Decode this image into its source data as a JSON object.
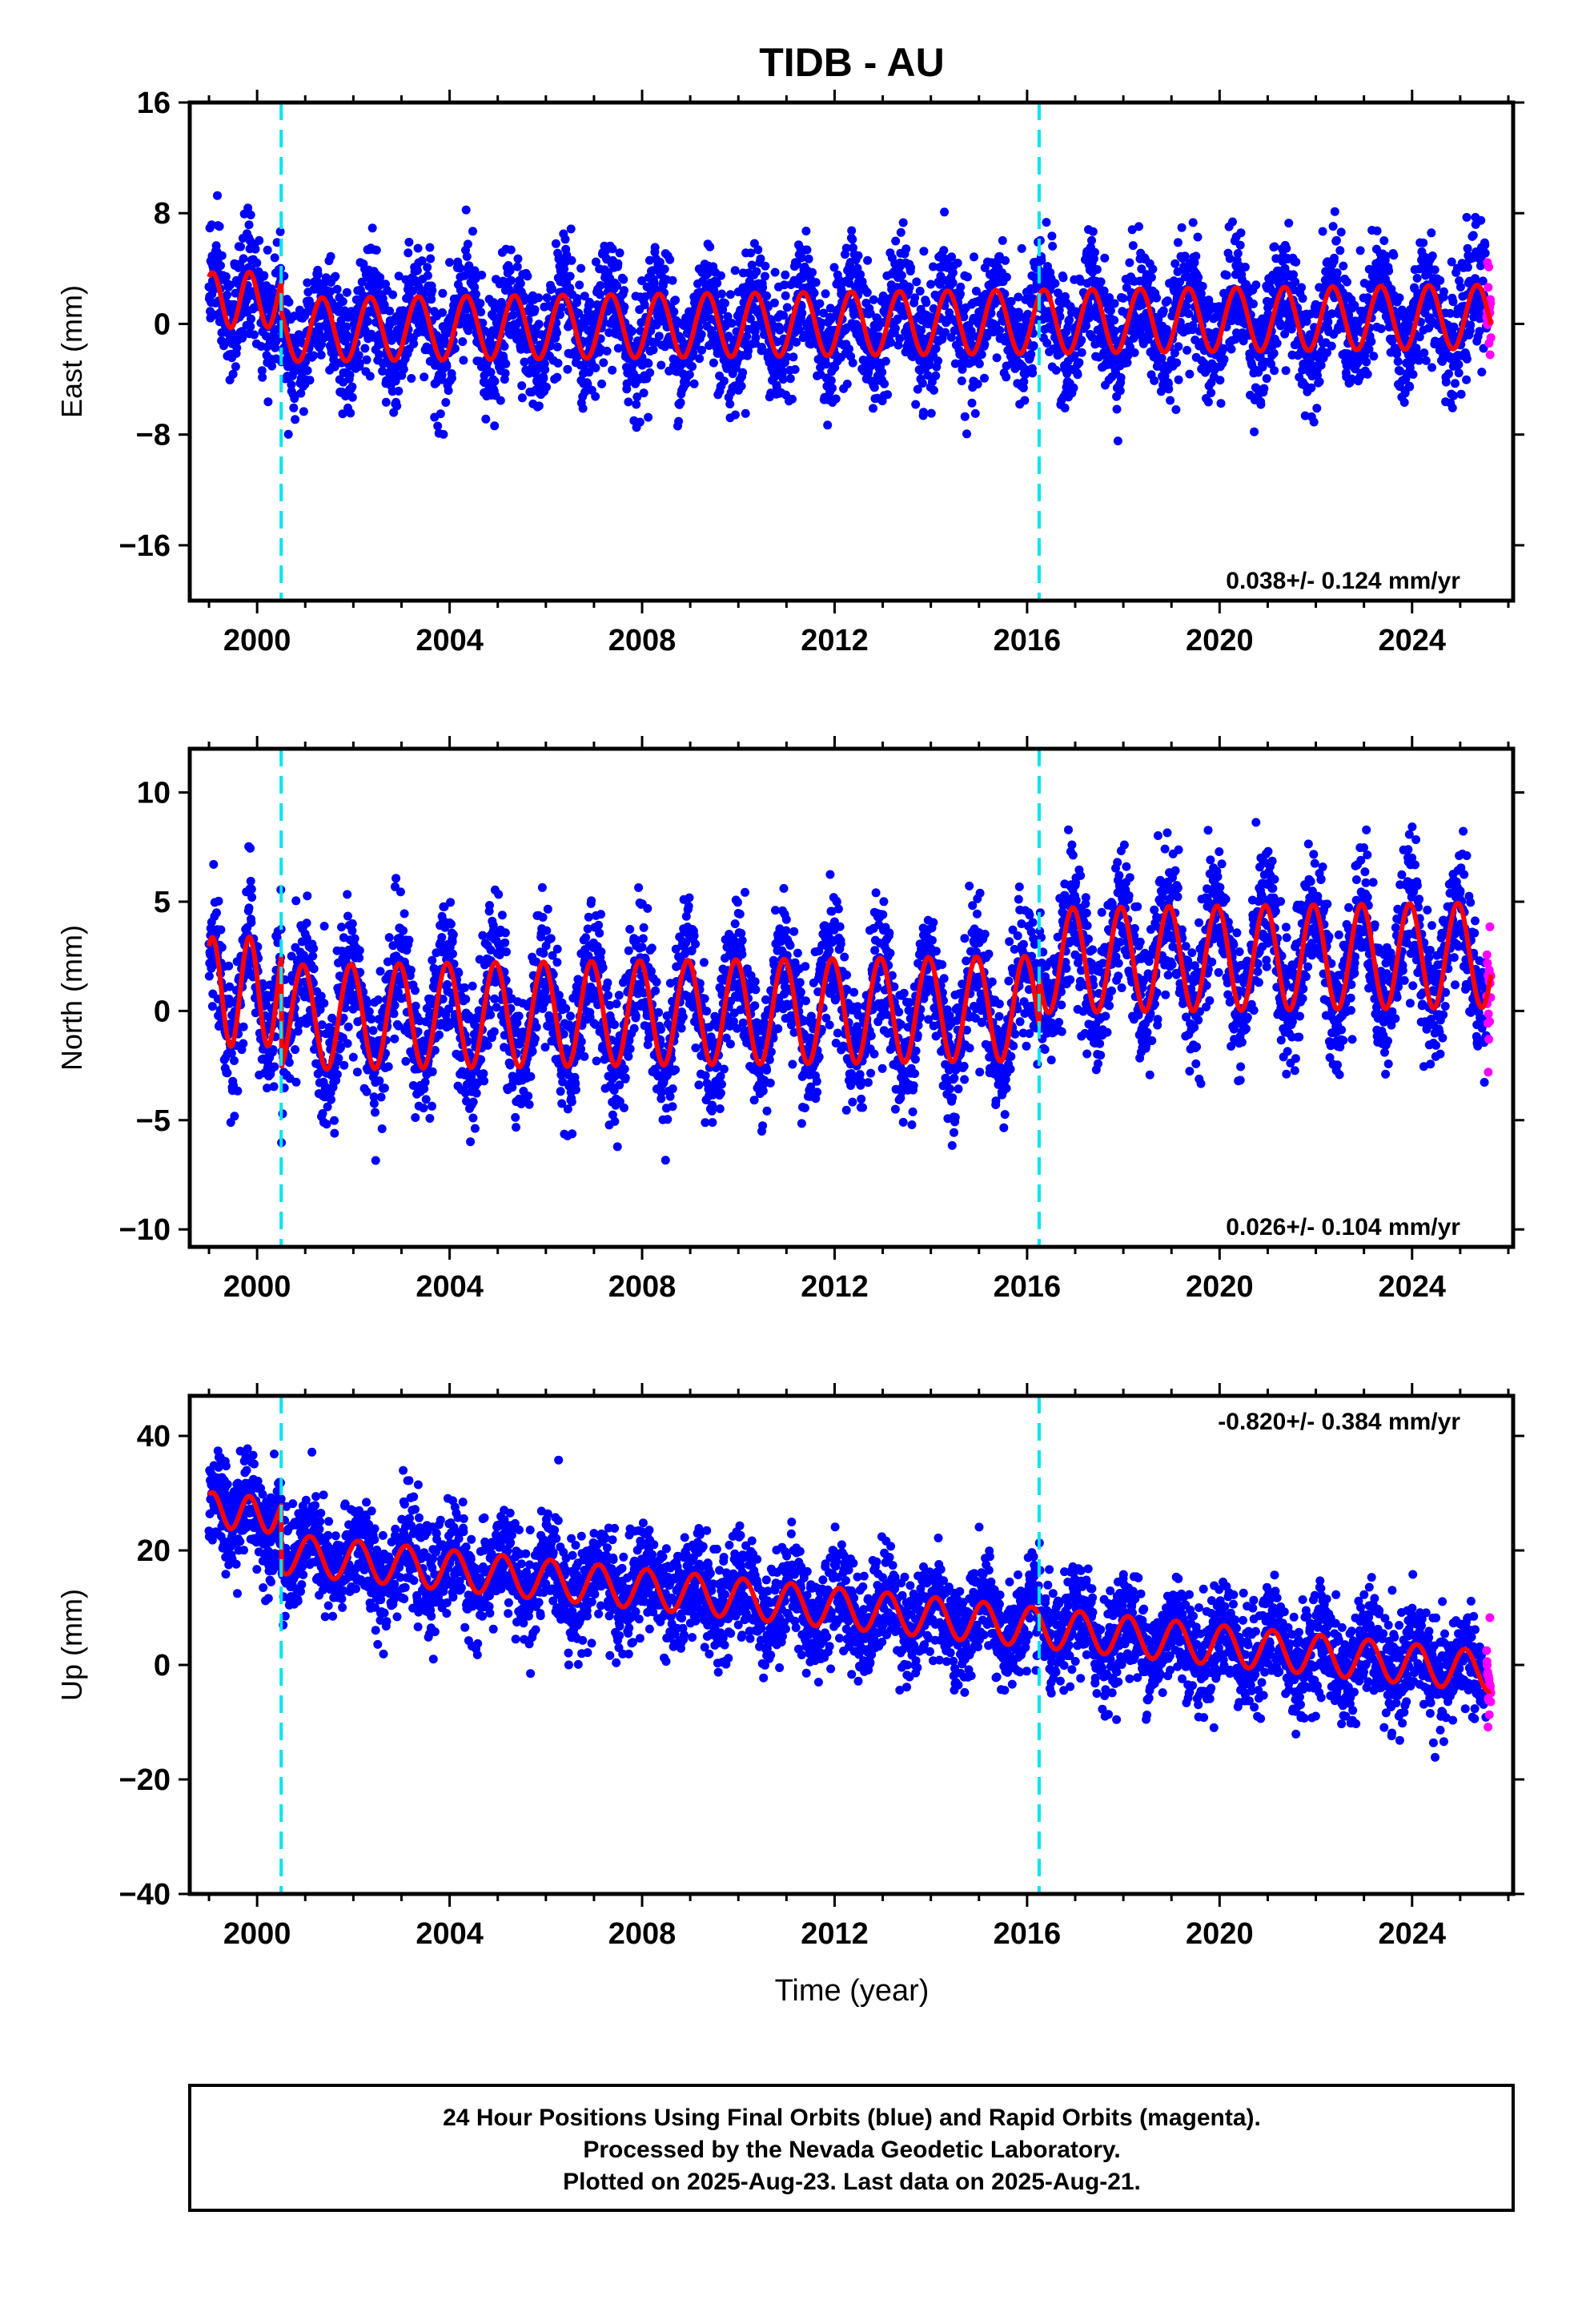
{
  "chart_data": {
    "type": "scatter",
    "title": "TIDB - AU",
    "xlabel": "Time (year)",
    "xlim": [
      1998.6,
      2026.1
    ],
    "xticks": [
      2000,
      2004,
      2008,
      2012,
      2016,
      2020,
      2024
    ],
    "xtick_labels": [
      "2000",
      "2004",
      "2008",
      "2012",
      "2016",
      "2020",
      "2024"
    ],
    "equipment_changes": [
      2000.5,
      2016.25
    ],
    "series_colors": {
      "final_orbits": "#0000ff",
      "rapid_orbits": "#ff00ff",
      "model_fit": "#ff0000",
      "equipment_change": "#00e5ee"
    },
    "data_span": {
      "start": 1999.0,
      "final_end": 2025.55,
      "rapid_end": 2025.64
    },
    "panels": [
      {
        "id": "east",
        "ylabel": "East (mm)",
        "ylim": [
          -20,
          16
        ],
        "yticks": [
          16,
          8,
          0,
          -8,
          -16
        ],
        "ytick_labels": [
          "16",
          "8",
          "0",
          "−8",
          "−16"
        ],
        "rate_label": "0.038+/- 0.124 mm/yr",
        "rate_position": "bottom-right",
        "trend": {
          "intercept": 0.0,
          "slope_per_year": 0.038
        },
        "annual_amplitude": 2.3,
        "annual_phase": 0.9,
        "noise_sd": 2.1,
        "early_segment": {
          "end": 2000.5,
          "offset": 2.2,
          "amplitude": 2.0
        }
      },
      {
        "id": "north",
        "ylabel": "North (mm)",
        "ylim": [
          -10.8,
          12
        ],
        "yticks": [
          10,
          5,
          0,
          -5,
          -10
        ],
        "ytick_labels": [
          "10",
          "5",
          "0",
          "−5",
          "−10"
        ],
        "rate_label": "0.026+/- 0.104 mm/yr",
        "rate_position": "bottom-right",
        "trend": {
          "intercept": 0.0,
          "slope_per_year": 0.026
        },
        "annual_amplitude": 2.4,
        "annual_phase": 0.3,
        "noise_sd": 1.5,
        "step_after_2016": 2.2,
        "early_segment": {
          "end": 2000.5,
          "offset": 1.2,
          "amplitude": 2.5
        }
      },
      {
        "id": "up",
        "ylabel": "Up (mm)",
        "ylim": [
          -40,
          47
        ],
        "yticks": [
          40,
          20,
          0,
          -20,
          -40
        ],
        "ytick_labels": [
          "40",
          "20",
          "0",
          "−20",
          "−40"
        ],
        "rate_label": "-0.820+/- 0.384 mm/yr",
        "rate_position": "top-right",
        "trend": {
          "intercept": 10.0,
          "slope_per_year": -0.82
        },
        "annual_amplitude": 3.5,
        "annual_phase": 0.15,
        "noise_sd": 4.5,
        "early_segment": {
          "end": 2000.5,
          "offset": 6.5,
          "amplitude": 3.0
        }
      }
    ]
  },
  "footer": {
    "line1": "24 Hour Positions Using Final Orbits (blue) and Rapid Orbits (magenta).",
    "line2": "Processed by the Nevada Geodetic Laboratory.",
    "line3": "Plotted on 2025-Aug-23. Last data on 2025-Aug-21."
  }
}
